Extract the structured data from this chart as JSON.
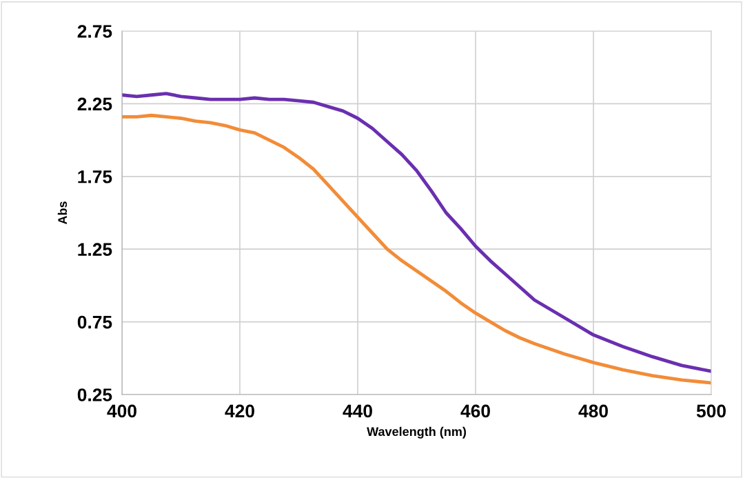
{
  "chart_data": {
    "type": "line",
    "xlabel": "Wavelength (nm)",
    "ylabel": "Abs",
    "x": [
      400,
      402.5,
      405,
      407.5,
      410,
      412.5,
      415,
      417.5,
      420,
      422.5,
      425,
      427.5,
      430,
      432.5,
      435,
      437.5,
      440,
      442.5,
      445,
      447.5,
      450,
      452.5,
      455,
      457.5,
      460,
      462.5,
      465,
      467.5,
      470,
      475,
      480,
      485,
      490,
      495,
      500
    ],
    "series": [
      {
        "color": "#6a2fb0",
        "values": [
          2.31,
          2.3,
          2.31,
          2.32,
          2.3,
          2.29,
          2.28,
          2.28,
          2.28,
          2.29,
          2.28,
          2.28,
          2.27,
          2.26,
          2.23,
          2.2,
          2.15,
          2.08,
          1.99,
          1.9,
          1.79,
          1.65,
          1.5,
          1.39,
          1.27,
          1.17,
          1.08,
          0.99,
          0.9,
          0.78,
          0.66,
          0.58,
          0.51,
          0.45,
          0.41
        ]
      },
      {
        "color": "#f28c38",
        "values": [
          2.16,
          2.16,
          2.17,
          2.16,
          2.15,
          2.13,
          2.12,
          2.1,
          2.07,
          2.05,
          2.0,
          1.95,
          1.88,
          1.8,
          1.69,
          1.58,
          1.47,
          1.36,
          1.25,
          1.17,
          1.1,
          1.03,
          0.96,
          0.88,
          0.81,
          0.75,
          0.69,
          0.64,
          0.6,
          0.53,
          0.47,
          0.42,
          0.38,
          0.35,
          0.33
        ]
      }
    ],
    "xlim": [
      400,
      500
    ],
    "xticks": [
      400,
      420,
      440,
      460,
      480,
      500
    ],
    "ylim": [
      0.25,
      2.75
    ],
    "yticks": [
      0.25,
      0.75,
      1.25,
      1.75,
      2.25,
      2.75
    ],
    "grid": true
  }
}
